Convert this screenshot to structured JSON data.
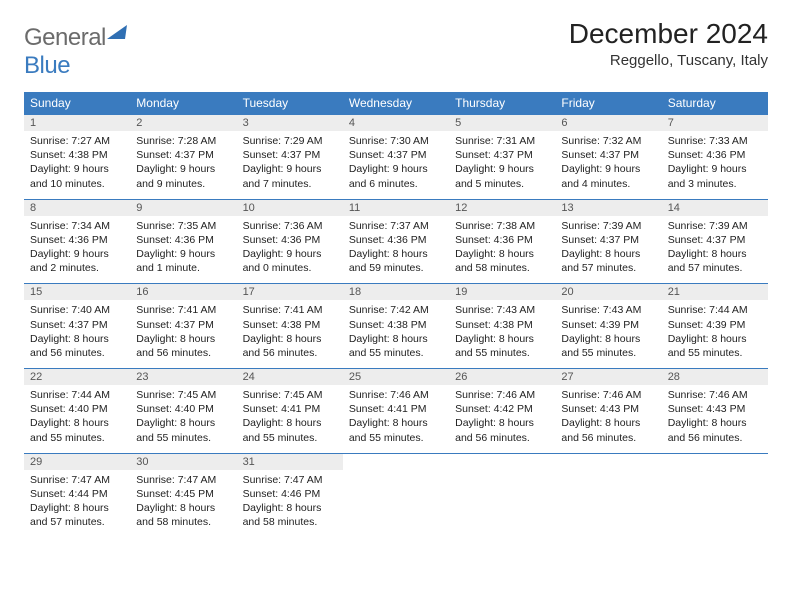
{
  "logo": {
    "general": "General",
    "blue": "Blue"
  },
  "title": "December 2024",
  "location": "Reggello, Tuscany, Italy",
  "colors": {
    "header_bg": "#3a7bbf",
    "header_text": "#ffffff",
    "daynum_bg": "#ededed",
    "week_border": "#3a7bbf",
    "logo_gray": "#6b6b6b",
    "logo_blue": "#3a7bbf"
  },
  "typography": {
    "title_fontsize": 28,
    "location_fontsize": 15,
    "header_fontsize": 12,
    "body_fontsize": 10.5
  },
  "day_headers": [
    "Sunday",
    "Monday",
    "Tuesday",
    "Wednesday",
    "Thursday",
    "Friday",
    "Saturday"
  ],
  "weeks": [
    [
      {
        "num": "1",
        "sunrise": "Sunrise: 7:27 AM",
        "sunset": "Sunset: 4:38 PM",
        "daylight": "Daylight: 9 hours and 10 minutes."
      },
      {
        "num": "2",
        "sunrise": "Sunrise: 7:28 AM",
        "sunset": "Sunset: 4:37 PM",
        "daylight": "Daylight: 9 hours and 9 minutes."
      },
      {
        "num": "3",
        "sunrise": "Sunrise: 7:29 AM",
        "sunset": "Sunset: 4:37 PM",
        "daylight": "Daylight: 9 hours and 7 minutes."
      },
      {
        "num": "4",
        "sunrise": "Sunrise: 7:30 AM",
        "sunset": "Sunset: 4:37 PM",
        "daylight": "Daylight: 9 hours and 6 minutes."
      },
      {
        "num": "5",
        "sunrise": "Sunrise: 7:31 AM",
        "sunset": "Sunset: 4:37 PM",
        "daylight": "Daylight: 9 hours and 5 minutes."
      },
      {
        "num": "6",
        "sunrise": "Sunrise: 7:32 AM",
        "sunset": "Sunset: 4:37 PM",
        "daylight": "Daylight: 9 hours and 4 minutes."
      },
      {
        "num": "7",
        "sunrise": "Sunrise: 7:33 AM",
        "sunset": "Sunset: 4:36 PM",
        "daylight": "Daylight: 9 hours and 3 minutes."
      }
    ],
    [
      {
        "num": "8",
        "sunrise": "Sunrise: 7:34 AM",
        "sunset": "Sunset: 4:36 PM",
        "daylight": "Daylight: 9 hours and 2 minutes."
      },
      {
        "num": "9",
        "sunrise": "Sunrise: 7:35 AM",
        "sunset": "Sunset: 4:36 PM",
        "daylight": "Daylight: 9 hours and 1 minute."
      },
      {
        "num": "10",
        "sunrise": "Sunrise: 7:36 AM",
        "sunset": "Sunset: 4:36 PM",
        "daylight": "Daylight: 9 hours and 0 minutes."
      },
      {
        "num": "11",
        "sunrise": "Sunrise: 7:37 AM",
        "sunset": "Sunset: 4:36 PM",
        "daylight": "Daylight: 8 hours and 59 minutes."
      },
      {
        "num": "12",
        "sunrise": "Sunrise: 7:38 AM",
        "sunset": "Sunset: 4:36 PM",
        "daylight": "Daylight: 8 hours and 58 minutes."
      },
      {
        "num": "13",
        "sunrise": "Sunrise: 7:39 AM",
        "sunset": "Sunset: 4:37 PM",
        "daylight": "Daylight: 8 hours and 57 minutes."
      },
      {
        "num": "14",
        "sunrise": "Sunrise: 7:39 AM",
        "sunset": "Sunset: 4:37 PM",
        "daylight": "Daylight: 8 hours and 57 minutes."
      }
    ],
    [
      {
        "num": "15",
        "sunrise": "Sunrise: 7:40 AM",
        "sunset": "Sunset: 4:37 PM",
        "daylight": "Daylight: 8 hours and 56 minutes."
      },
      {
        "num": "16",
        "sunrise": "Sunrise: 7:41 AM",
        "sunset": "Sunset: 4:37 PM",
        "daylight": "Daylight: 8 hours and 56 minutes."
      },
      {
        "num": "17",
        "sunrise": "Sunrise: 7:41 AM",
        "sunset": "Sunset: 4:38 PM",
        "daylight": "Daylight: 8 hours and 56 minutes."
      },
      {
        "num": "18",
        "sunrise": "Sunrise: 7:42 AM",
        "sunset": "Sunset: 4:38 PM",
        "daylight": "Daylight: 8 hours and 55 minutes."
      },
      {
        "num": "19",
        "sunrise": "Sunrise: 7:43 AM",
        "sunset": "Sunset: 4:38 PM",
        "daylight": "Daylight: 8 hours and 55 minutes."
      },
      {
        "num": "20",
        "sunrise": "Sunrise: 7:43 AM",
        "sunset": "Sunset: 4:39 PM",
        "daylight": "Daylight: 8 hours and 55 minutes."
      },
      {
        "num": "21",
        "sunrise": "Sunrise: 7:44 AM",
        "sunset": "Sunset: 4:39 PM",
        "daylight": "Daylight: 8 hours and 55 minutes."
      }
    ],
    [
      {
        "num": "22",
        "sunrise": "Sunrise: 7:44 AM",
        "sunset": "Sunset: 4:40 PM",
        "daylight": "Daylight: 8 hours and 55 minutes."
      },
      {
        "num": "23",
        "sunrise": "Sunrise: 7:45 AM",
        "sunset": "Sunset: 4:40 PM",
        "daylight": "Daylight: 8 hours and 55 minutes."
      },
      {
        "num": "24",
        "sunrise": "Sunrise: 7:45 AM",
        "sunset": "Sunset: 4:41 PM",
        "daylight": "Daylight: 8 hours and 55 minutes."
      },
      {
        "num": "25",
        "sunrise": "Sunrise: 7:46 AM",
        "sunset": "Sunset: 4:41 PM",
        "daylight": "Daylight: 8 hours and 55 minutes."
      },
      {
        "num": "26",
        "sunrise": "Sunrise: 7:46 AM",
        "sunset": "Sunset: 4:42 PM",
        "daylight": "Daylight: 8 hours and 56 minutes."
      },
      {
        "num": "27",
        "sunrise": "Sunrise: 7:46 AM",
        "sunset": "Sunset: 4:43 PM",
        "daylight": "Daylight: 8 hours and 56 minutes."
      },
      {
        "num": "28",
        "sunrise": "Sunrise: 7:46 AM",
        "sunset": "Sunset: 4:43 PM",
        "daylight": "Daylight: 8 hours and 56 minutes."
      }
    ],
    [
      {
        "num": "29",
        "sunrise": "Sunrise: 7:47 AM",
        "sunset": "Sunset: 4:44 PM",
        "daylight": "Daylight: 8 hours and 57 minutes."
      },
      {
        "num": "30",
        "sunrise": "Sunrise: 7:47 AM",
        "sunset": "Sunset: 4:45 PM",
        "daylight": "Daylight: 8 hours and 58 minutes."
      },
      {
        "num": "31",
        "sunrise": "Sunrise: 7:47 AM",
        "sunset": "Sunset: 4:46 PM",
        "daylight": "Daylight: 8 hours and 58 minutes."
      },
      null,
      null,
      null,
      null
    ]
  ]
}
